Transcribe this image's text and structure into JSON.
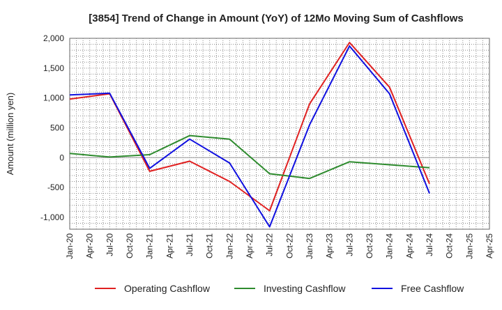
{
  "chart_data": {
    "type": "line",
    "title": "[3854]  Trend of Change in Amount (YoY) of 12Mo Moving Sum of Cashflows",
    "xlabel": "",
    "ylabel": "Amount (million yen)",
    "ylim": [
      -1200,
      2000
    ],
    "yticks": [
      2000,
      1500,
      1000,
      500,
      0,
      -500,
      -1000
    ],
    "ytick_labels": [
      "2,000",
      "1,500",
      "1,000",
      "500",
      "0",
      "-500",
      "-1,000"
    ],
    "categories": [
      "Jan-20",
      "Apr-20",
      "Jul-20",
      "Oct-20",
      "Jan-21",
      "Apr-21",
      "Jul-21",
      "Oct-21",
      "Jan-22",
      "Apr-22",
      "Jul-22",
      "Oct-22",
      "Jan-23",
      "Apr-23",
      "Jul-23",
      "Oct-23",
      "Jan-24",
      "Apr-24",
      "Jul-24",
      "Oct-24",
      "Jan-25",
      "Apr-25"
    ],
    "grid": true,
    "legend_position": "bottom",
    "series": [
      {
        "name": "Operating Cashflow",
        "color": "#e02020",
        "values": [
          980,
          null,
          1070,
          null,
          -230,
          null,
          -60,
          null,
          -400,
          null,
          -890,
          null,
          900,
          null,
          1930,
          null,
          1180,
          null,
          -440,
          null,
          null,
          null
        ]
      },
      {
        "name": "Investing Cashflow",
        "color": "#2e8b2e",
        "values": [
          70,
          null,
          10,
          null,
          50,
          null,
          370,
          null,
          310,
          null,
          -270,
          null,
          -350,
          null,
          -70,
          null,
          -120,
          null,
          -170,
          null,
          null,
          null
        ]
      },
      {
        "name": "Free Cashflow",
        "color": "#1010e0",
        "values": [
          1050,
          null,
          1080,
          null,
          -180,
          null,
          310,
          null,
          -90,
          null,
          -1160,
          null,
          550,
          null,
          1870,
          null,
          1070,
          null,
          -600,
          null,
          null,
          null
        ]
      }
    ]
  }
}
